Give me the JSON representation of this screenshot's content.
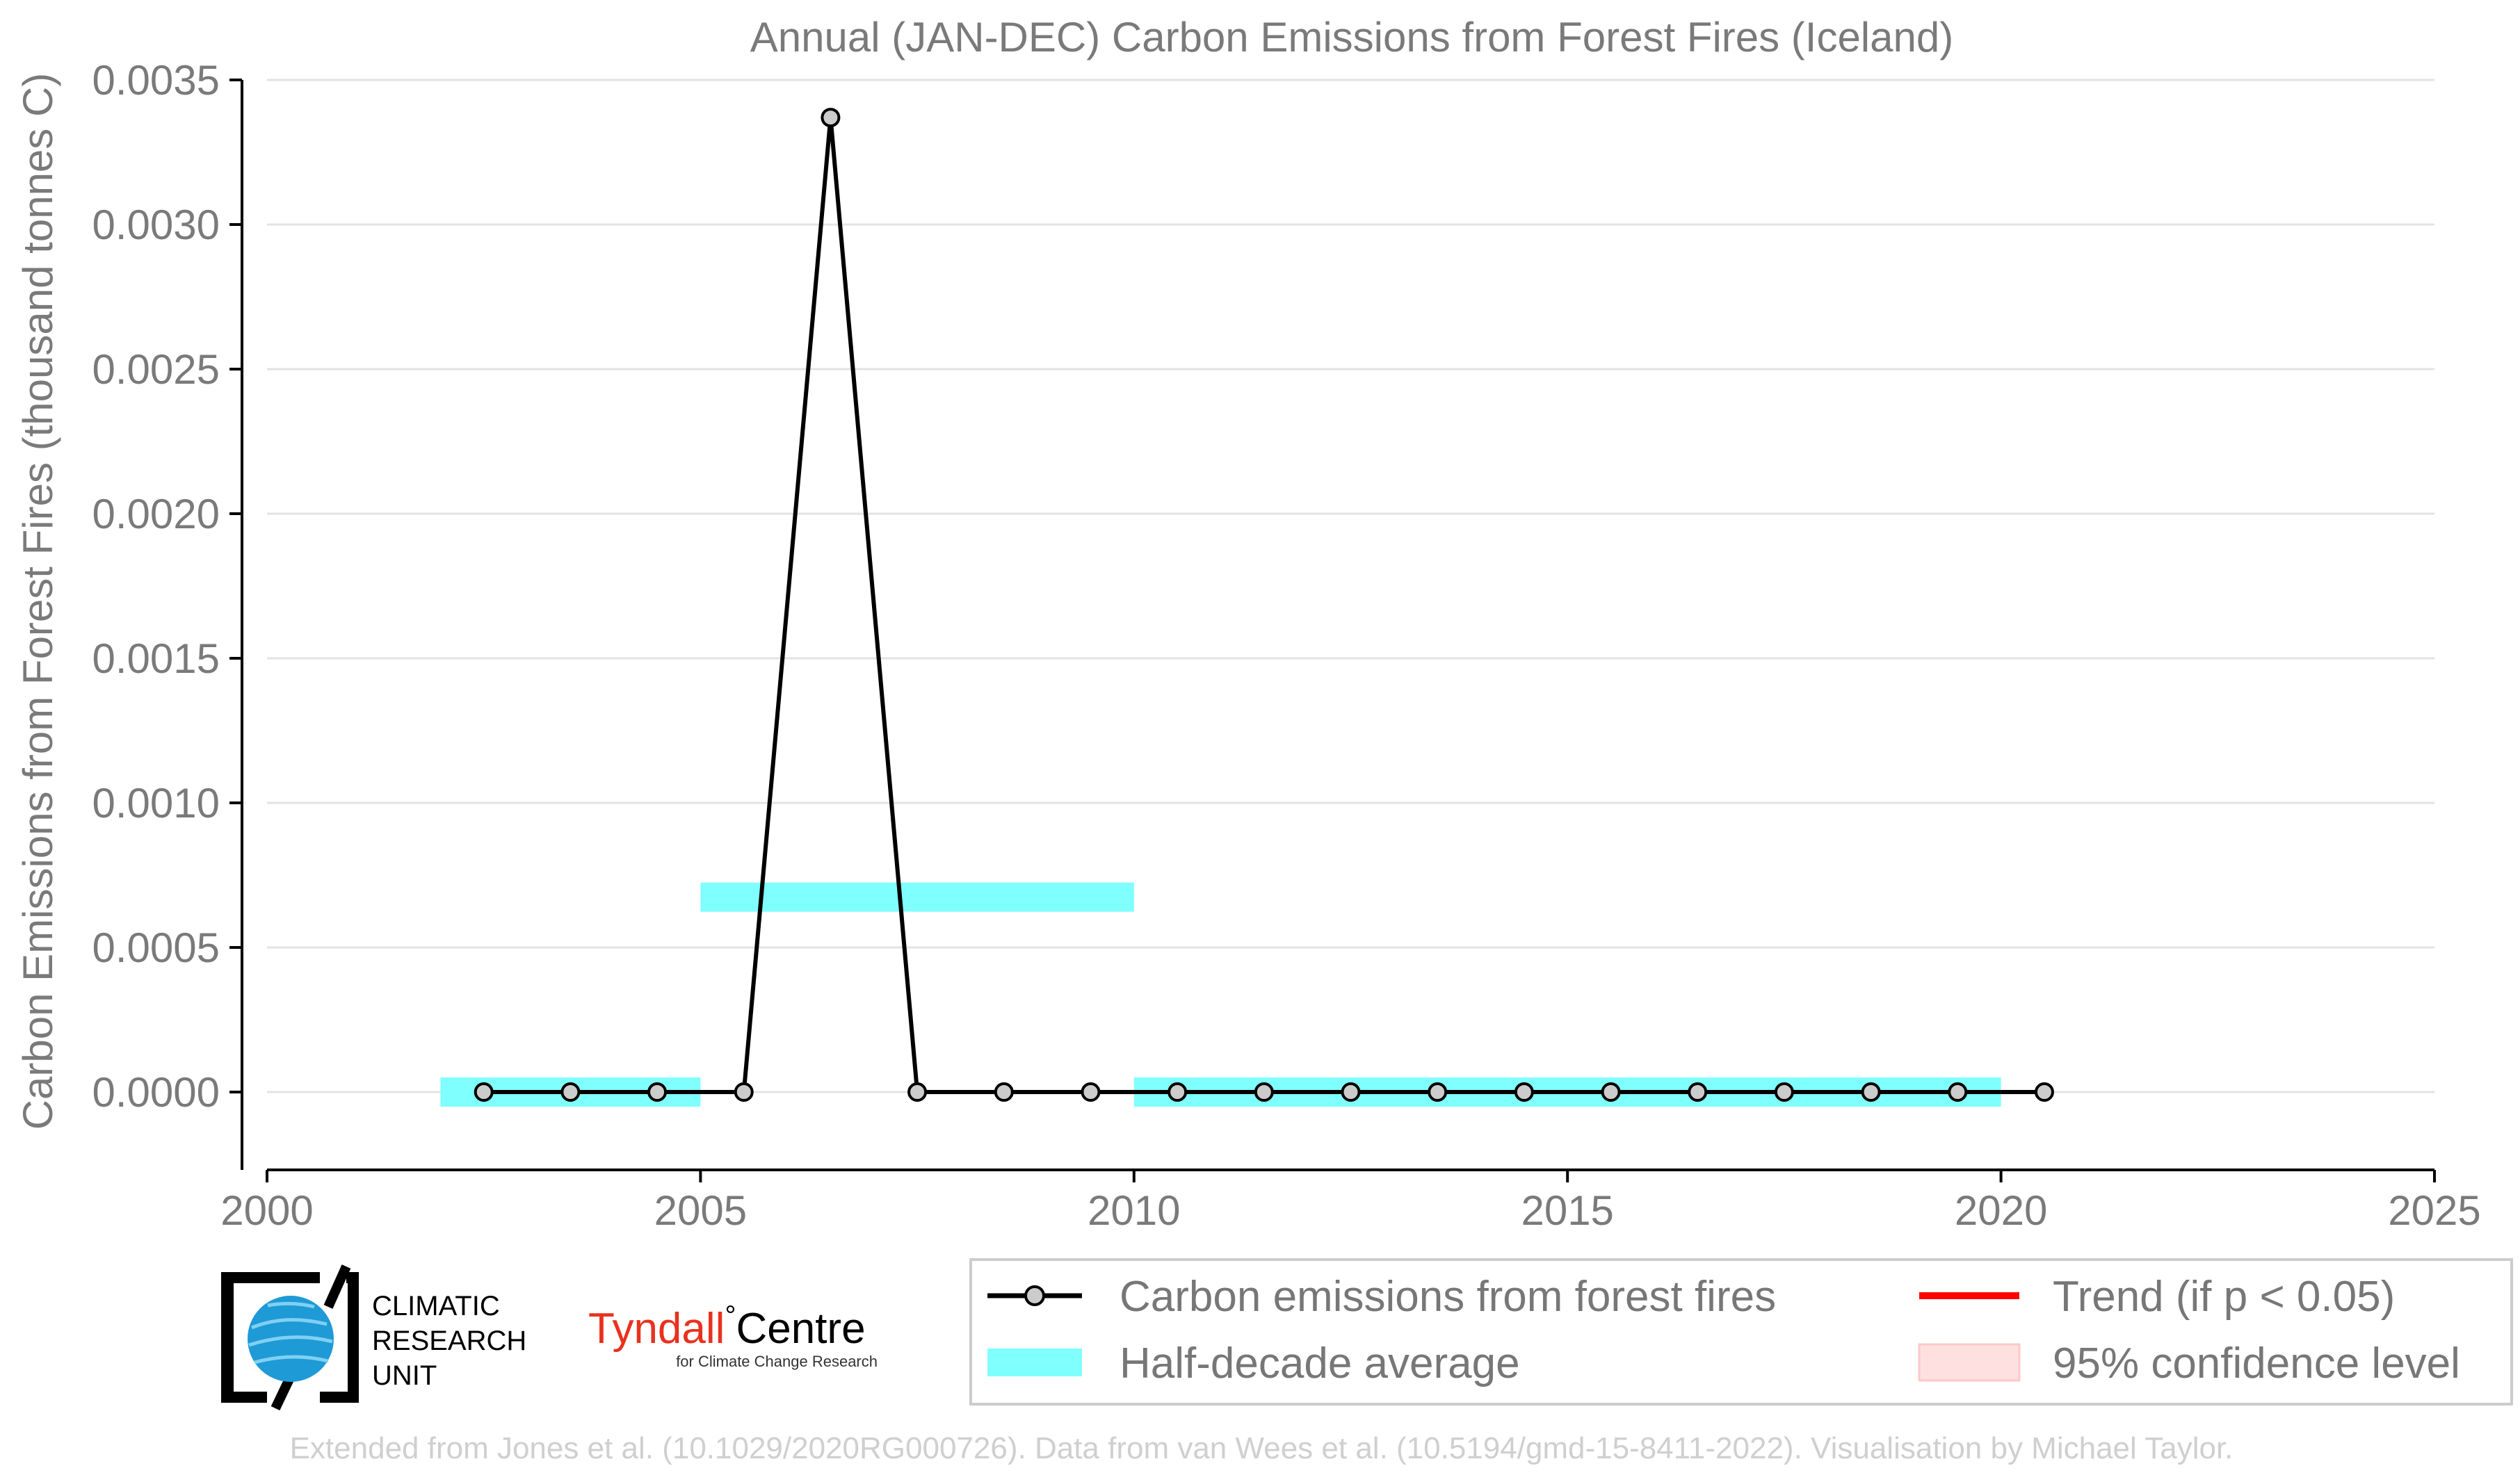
{
  "chart_data": {
    "type": "line",
    "title": "Annual (JAN-DEC) Carbon Emissions from Forest Fires (Iceland)",
    "ylabel": "Carbon Emissions from Forest Fires (thousand tonnes C)",
    "xlabel": "",
    "xlim": [
      2000,
      2025
    ],
    "ylim": [
      -0.00028,
      0.0035
    ],
    "x_ticks": [
      "2000",
      "2005",
      "2010",
      "2015",
      "2020",
      "2025"
    ],
    "y_ticks": [
      "0.0000",
      "0.0005",
      "0.0010",
      "0.0015",
      "0.0020",
      "0.0025",
      "0.0030",
      "0.0035"
    ],
    "grid": "horizontal",
    "series": [
      {
        "name": "Carbon emissions from forest fires",
        "x": [
          2002.5,
          2003.5,
          2004.5,
          2005.5,
          2006.5,
          2007.5,
          2008.5,
          2009.5,
          2010.5,
          2011.5,
          2012.5,
          2013.5,
          2014.5,
          2015.5,
          2016.5,
          2017.5,
          2018.5,
          2019.5,
          2020.5
        ],
        "values": [
          0,
          0,
          0,
          0,
          0.00337,
          0,
          0,
          0,
          0,
          0,
          0,
          0,
          0,
          0,
          0,
          0,
          0,
          0,
          0
        ],
        "color": "#000000"
      }
    ],
    "half_decade_average": [
      {
        "x_start": 2002,
        "x_end": 2005,
        "value": 0
      },
      {
        "x_start": 2005,
        "x_end": 2010,
        "value": 0.000674
      },
      {
        "x_start": 2010,
        "x_end": 2020,
        "value": 0
      }
    ],
    "legend": {
      "placement": "bottom-right",
      "entries": [
        {
          "label": "Carbon emissions from forest fires",
          "kind": "line-marker",
          "color": "#000000"
        },
        {
          "label": "Trend (if p < 0.05)",
          "kind": "line",
          "color": "#ff0000"
        },
        {
          "label": "Half-decade average",
          "kind": "band",
          "color": "#80ffff"
        },
        {
          "label": "95% confidence level",
          "kind": "patch",
          "color": "#ffe0e0"
        }
      ]
    }
  },
  "logos": {
    "cru_lines": [
      "CLIMATIC",
      "RESEARCH",
      "UNIT"
    ],
    "tyndall_main": "Tyndall",
    "tyndall_degree": "°",
    "tyndall_centre": "Centre",
    "tyndall_sub": "for Climate Change Research"
  },
  "footer": "Extended from Jones et al. (10.1029/2020RG000726). Data from van Wees et al. (10.5194/gmd-15-8411-2022). Visualisation by Michael Taylor.",
  "colors": {
    "band": "#80ffff",
    "line": "#000000",
    "marker_fill": "#cccccc",
    "grid": "#e3e3e3",
    "trend": "#ff0000",
    "confidence": "#ffe0e0",
    "tyndall_red": "#e8321e"
  }
}
